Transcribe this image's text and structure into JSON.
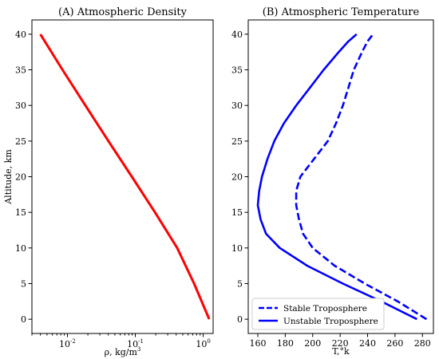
{
  "chart_data": [
    {
      "type": "line",
      "title": "(A) Atmospheric Density",
      "xlabel_base": "ρ, kg/m",
      "xlabel_exp": "3",
      "ylabel": "Altitude, km",
      "xscale": "log",
      "xlim": [
        0.003,
        1.4
      ],
      "ylim": [
        -2,
        42
      ],
      "xticks": [
        {
          "value": 0.01,
          "base": "10",
          "exp": "-2"
        },
        {
          "value": 0.1,
          "base": "10",
          "exp": "-1"
        },
        {
          "value": 1,
          "base": "10",
          "exp": "0"
        }
      ],
      "yticks": [
        0,
        5,
        10,
        15,
        20,
        25,
        30,
        35,
        40
      ],
      "color": "#ff0000",
      "series": [
        {
          "x": [
            1.225,
            0.736,
            0.414,
            0.195,
            0.0889,
            0.0401,
            0.0184,
            0.00846,
            0.004
          ],
          "y": [
            0,
            5,
            10,
            15,
            20,
            25,
            30,
            35,
            40
          ]
        }
      ]
    },
    {
      "type": "line",
      "title": "(B) Atmospheric Temperature",
      "xlabel": "T,°k",
      "xlim": [
        153,
        288
      ],
      "ylim": [
        -2,
        42
      ],
      "xticks": [
        160,
        180,
        200,
        220,
        240,
        260,
        280
      ],
      "yticks": [
        0,
        5,
        10,
        15,
        20,
        25,
        30,
        35,
        40
      ],
      "legend_position": "lower-left",
      "color": "#0000ff",
      "series": [
        {
          "name": "Stable Troposphere",
          "style": "dashed",
          "x": [
            283,
            262,
            238,
            216,
            200,
            193,
            190,
            188,
            188,
            191,
            201,
            211,
            217,
            222,
            226,
            230,
            236,
            240,
            244
          ],
          "y": [
            0,
            2.5,
            5,
            7.5,
            10,
            12,
            14,
            16,
            18,
            20,
            22.5,
            25,
            27.5,
            30,
            32.5,
            35,
            37.5,
            39,
            40
          ]
        },
        {
          "name": "Unstable Troposphere",
          "style": "solid",
          "x": [
            276,
            250,
            222,
            196,
            176,
            166,
            162,
            160,
            161,
            163,
            167,
            172,
            179,
            188,
            198,
            208,
            219,
            226,
            232
          ],
          "y": [
            0,
            2.5,
            5,
            7.5,
            10,
            12,
            14,
            16,
            18,
            20,
            22.5,
            25,
            27.5,
            30,
            32.5,
            35,
            37.5,
            39,
            40
          ]
        }
      ]
    }
  ]
}
